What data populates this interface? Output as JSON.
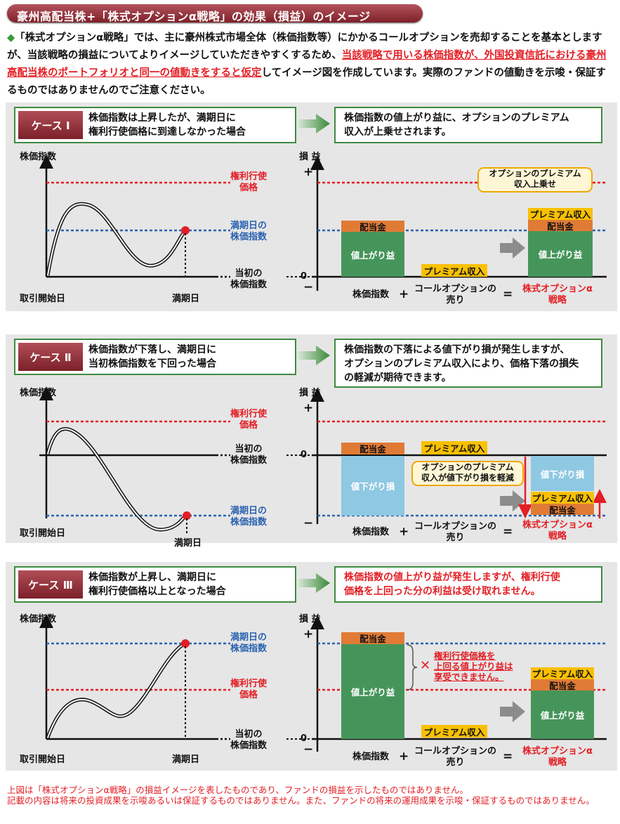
{
  "title": "豪州高配当株+「株式オプションα戦略」の効果（損益）のイメージ",
  "intro": {
    "bullet": "◆",
    "text1": "「株式オプションα戦略」では、主に豪州株式市場全体（株価指数等）にかかるコールオプションを売却することを基本としますが、当該戦略の損益についてよりイメージしていただきやすくするため、",
    "highlight": "当該戦略で用いる株価指数が、外国投資信託における豪州高配当株のポートフォリオと同一の値動きをすると仮定",
    "text2": "してイメージ図を作成しています。実際のファンドの値動きを示唆・保証するものではありませんのでご注意ください。"
  },
  "labels": {
    "index": "株価指数",
    "pl": "損 益",
    "strike": "権利行使\n価格",
    "maturity_index": "満期日の\n株価指数",
    "initial_index": "当初の\n株価指数",
    "start_date": "取引開始日",
    "maturity_date": "満期日",
    "plus": "+",
    "minus": "−",
    "zero": "0",
    "dividend": "配当金",
    "gain": "値上がり益",
    "loss": "値下がり損",
    "premium": "プレミアム収入",
    "eq_index": "株価指数",
    "eq_call": "コールオプションの\n売り",
    "eq_strategy": "株式オプションα\n戦略",
    "eq_plus": "+",
    "eq_equals": "="
  },
  "cases": [
    {
      "tag": "ケース Ⅰ",
      "desc": "株価指数は上昇したが、満期日に\n権利行使価格に到達しなかった場合",
      "result": "株価指数の値上がり益に、オプションのプレミアム\n収入が上乗せされます。",
      "callout": "オプションのプレミアム\n収入上乗せ"
    },
    {
      "tag": "ケース Ⅱ",
      "desc": "株価指数が下落し、満期日に\n当初株価指数を下回った場合",
      "result": "株価指数の下落による値下がり損が発生しますが、\nオプションのプレミアム収入により、価格下落の損失\nの軽減が期待できます。",
      "callout": "オプションのプレミアム\n収入が値下がり損を軽減"
    },
    {
      "tag": "ケース Ⅲ",
      "desc": "株価指数が上昇し、満期日に\n権利行使価格以上となった場合",
      "result": "株価指数の値上がり益が発生しますが、権利行使\n価格を上回った分の利益は受け取れません。",
      "note_mark": "✕",
      "note": "権利行使価格を\n上回る値上がり益は\n享受できません。"
    }
  ],
  "footer": "上図は「株式オプションα戦略」の損益イメージを表したものであり、ファンドの損益を示したものではありません。\n記載の内容は将来の投資成果を示唆あるいは保証するものではありません。また、ファンドの将来の運用成果を示唆・保証するものではありません。",
  "colors": {
    "title_bg": "#8f2e36",
    "green_border": "#3f8a3f",
    "red": "#e31e24",
    "blue": "#2a62b0",
    "dividend": "#e07b36",
    "gain": "#45955a",
    "loss": "#8ec8e2",
    "premium": "#f9c000",
    "panel_bg": "#e6e6e6"
  }
}
